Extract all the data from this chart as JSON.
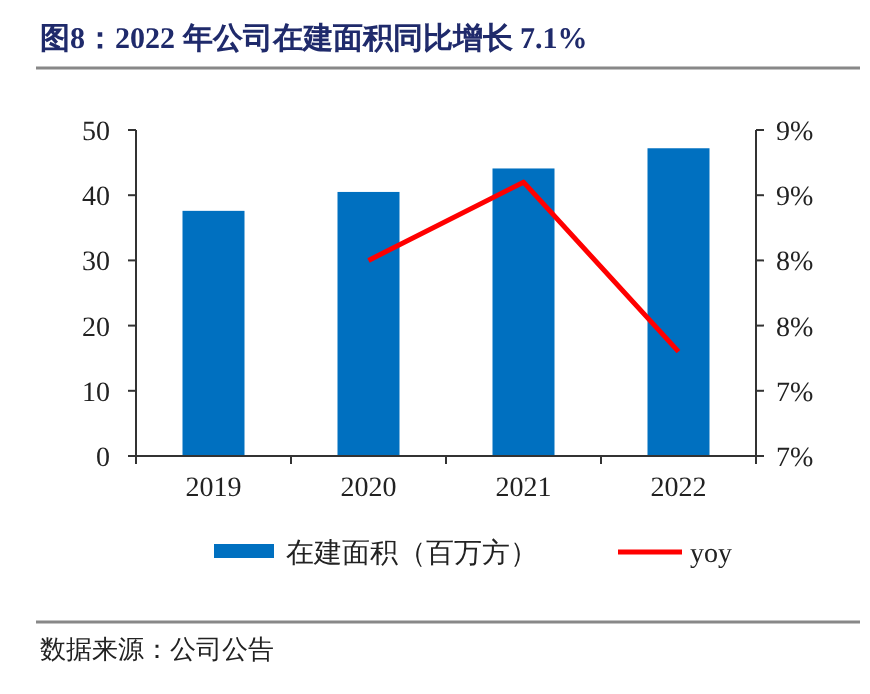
{
  "chart_data": {
    "type": "bar",
    "title": "图8：2022 年公司在建面积同比增长 7.1%",
    "categories": [
      "2019",
      "2020",
      "2021",
      "2022"
    ],
    "series": [
      {
        "name": "在建面积（百万方）",
        "color": "#0070c0",
        "values": [
          37.6,
          40.5,
          44.1,
          47.2
        ]
      },
      {
        "name": "yoy",
        "type": "line",
        "axis": "y2",
        "color": "#ff0000",
        "values": [
          null,
          8.0,
          8.6,
          7.3
        ]
      }
    ],
    "ylim": [
      0,
      50
    ],
    "yticks": [
      0,
      10,
      20,
      30,
      40,
      50
    ],
    "y2lim": [
      6.5,
      9.0
    ],
    "y2ticks": [
      {
        "value": 6.5,
        "label": "7%"
      },
      {
        "value": 7.0,
        "label": "7%"
      },
      {
        "value": 7.5,
        "label": "8%"
      },
      {
        "value": 8.0,
        "label": "8%"
      },
      {
        "value": 8.5,
        "label": "9%"
      },
      {
        "value": 9.0,
        "label": "9%"
      }
    ],
    "legend": "bottom",
    "grid": false,
    "annotations": [
      "数据来源：公司公告"
    ]
  }
}
